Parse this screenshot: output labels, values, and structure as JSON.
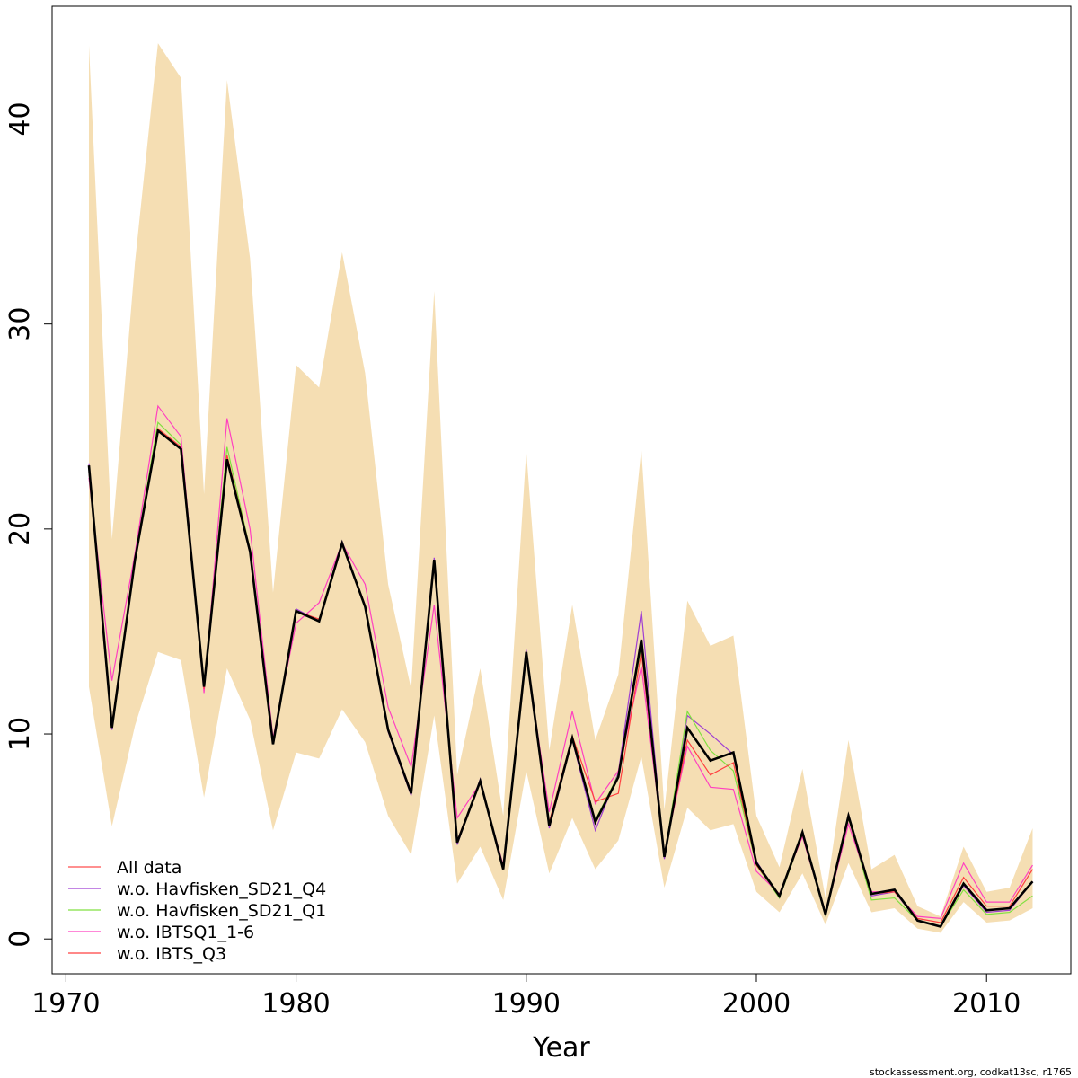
{
  "chart_data": {
    "type": "line",
    "title": "",
    "xlabel": "Year",
    "ylabel": "",
    "xlim": [
      1969.4,
      2013.66
    ],
    "ylim": [
      -1.7,
      45.5
    ],
    "xticks": [
      "1970",
      "1980",
      "1990",
      "2000",
      "2010"
    ],
    "yticks": [
      "0",
      "10",
      "20",
      "30",
      "40"
    ],
    "grid": false,
    "legend_position": "bottom-left",
    "x": [
      1971,
      1972,
      1973,
      1974,
      1975,
      1976,
      1977,
      1978,
      1979,
      1980,
      1981,
      1982,
      1983,
      1984,
      1985,
      1986,
      1987,
      1988,
      1989,
      1990,
      1991,
      1992,
      1993,
      1994,
      1995,
      1996,
      1997,
      1998,
      1999,
      2000,
      2001,
      2002,
      2003,
      2004,
      2005,
      2006,
      2007,
      2008,
      2009,
      2010,
      2011,
      2012
    ],
    "band": {
      "color": "#F5DEB3",
      "upper": [
        43.6,
        19.5,
        33.0,
        43.7,
        42.0,
        21.7,
        41.9,
        33.2,
        16.9,
        28.0,
        26.9,
        33.5,
        27.6,
        17.3,
        12.2,
        31.6,
        8.0,
        13.2,
        6.0,
        23.8,
        9.2,
        16.3,
        9.7,
        12.9,
        23.9,
        6.3,
        16.5,
        14.3,
        14.8,
        6.0,
        3.5,
        8.3,
        2.0,
        9.7,
        3.4,
        4.1,
        1.6,
        1.1,
        4.5,
        2.3,
        2.5,
        5.4
      ],
      "lower": [
        12.3,
        5.5,
        10.4,
        14.0,
        13.6,
        6.9,
        13.2,
        10.7,
        5.3,
        9.1,
        8.8,
        11.2,
        9.6,
        6.0,
        4.1,
        10.9,
        2.7,
        4.5,
        1.9,
        8.2,
        3.2,
        5.9,
        3.4,
        4.8,
        8.9,
        2.5,
        6.4,
        5.3,
        5.6,
        2.3,
        1.3,
        3.2,
        0.7,
        3.7,
        1.3,
        1.5,
        0.5,
        0.3,
        1.8,
        0.8,
        0.9,
        1.5
      ]
    },
    "fit": {
      "color": "#000000",
      "values": [
        23.1,
        10.3,
        18.5,
        24.8,
        23.9,
        12.3,
        23.4,
        18.9,
        9.5,
        16.0,
        15.5,
        19.3,
        16.2,
        10.2,
        7.1,
        18.5,
        4.7,
        7.7,
        3.4,
        14.0,
        5.5,
        9.8,
        5.7,
        7.9,
        14.6,
        4.0,
        10.3,
        8.7,
        9.1,
        3.7,
        2.1,
        5.2,
        1.2,
        6.0,
        2.2,
        2.4,
        0.9,
        0.6,
        2.7,
        1.4,
        1.5,
        2.8
      ]
    },
    "series": [
      {
        "name": "All data",
        "color": "#FF4D4D",
        "values": [
          23.1,
          10.3,
          18.5,
          24.8,
          23.9,
          12.3,
          23.4,
          18.9,
          9.5,
          16.0,
          15.5,
          19.3,
          16.2,
          10.2,
          7.1,
          18.5,
          4.7,
          7.7,
          3.4,
          14.0,
          5.5,
          9.8,
          5.7,
          7.9,
          14.6,
          4.0,
          10.3,
          8.7,
          9.1,
          3.7,
          2.1,
          5.2,
          1.2,
          6.0,
          2.2,
          2.4,
          0.9,
          0.6,
          2.7,
          1.4,
          1.5,
          2.8
        ]
      },
      {
        "name": "w.o. Havfisken_SD21_Q4",
        "color": "#9F3FD3",
        "values": [
          23.2,
          10.2,
          18.5,
          24.8,
          23.9,
          12.4,
          23.4,
          18.8,
          9.5,
          16.1,
          15.5,
          19.4,
          16.2,
          10.1,
          7.0,
          18.6,
          4.6,
          7.8,
          3.4,
          14.1,
          5.4,
          9.7,
          5.3,
          8.1,
          16.0,
          3.9,
          10.9,
          10.0,
          9.0,
          3.8,
          2.0,
          5.2,
          1.1,
          6.1,
          2.1,
          2.3,
          0.9,
          0.6,
          2.6,
          1.3,
          1.4,
          2.8
        ]
      },
      {
        "name": "w.o. Havfisken_SD21_Q1",
        "color": "#80E040",
        "values": [
          23.0,
          10.4,
          18.6,
          25.2,
          24.1,
          12.3,
          24.0,
          19.0,
          9.6,
          16.0,
          15.5,
          19.3,
          16.2,
          10.2,
          7.1,
          18.4,
          4.7,
          7.7,
          3.4,
          14.0,
          5.5,
          9.9,
          5.8,
          8.0,
          14.3,
          4.0,
          11.1,
          9.2,
          8.2,
          3.6,
          2.0,
          5.1,
          1.1,
          5.9,
          1.9,
          2.0,
          0.9,
          0.6,
          2.4,
          1.2,
          1.3,
          2.1
        ]
      },
      {
        "name": "w.o. IBTSQ1_1-6",
        "color": "#FF40C0",
        "values": [
          22.5,
          12.6,
          18.8,
          26.0,
          24.5,
          12.0,
          25.4,
          20.0,
          9.8,
          15.4,
          16.4,
          19.3,
          17.3,
          11.3,
          8.4,
          16.3,
          5.9,
          7.6,
          3.6,
          13.8,
          6.2,
          11.1,
          6.6,
          8.2,
          13.3,
          4.2,
          9.4,
          7.4,
          7.3,
          3.3,
          2.2,
          5.0,
          1.2,
          5.6,
          2.3,
          2.3,
          1.1,
          1.0,
          3.7,
          1.8,
          1.8,
          3.6
        ]
      },
      {
        "name": "w.o. IBTS_Q3",
        "color": "#FF4040",
        "values": [
          22.8,
          10.5,
          18.5,
          24.9,
          24.0,
          12.2,
          23.6,
          19.0,
          9.6,
          16.0,
          15.6,
          19.3,
          16.3,
          10.2,
          7.2,
          18.3,
          4.8,
          7.7,
          3.5,
          14.0,
          5.7,
          9.9,
          6.7,
          7.1,
          14.0,
          4.1,
          9.7,
          8.0,
          8.6,
          3.6,
          2.1,
          5.1,
          1.3,
          5.9,
          2.2,
          2.3,
          1.0,
          0.8,
          3.0,
          1.6,
          1.6,
          3.4
        ]
      }
    ],
    "footnote": "stockassessment.org, codkat13sc, r1765"
  }
}
